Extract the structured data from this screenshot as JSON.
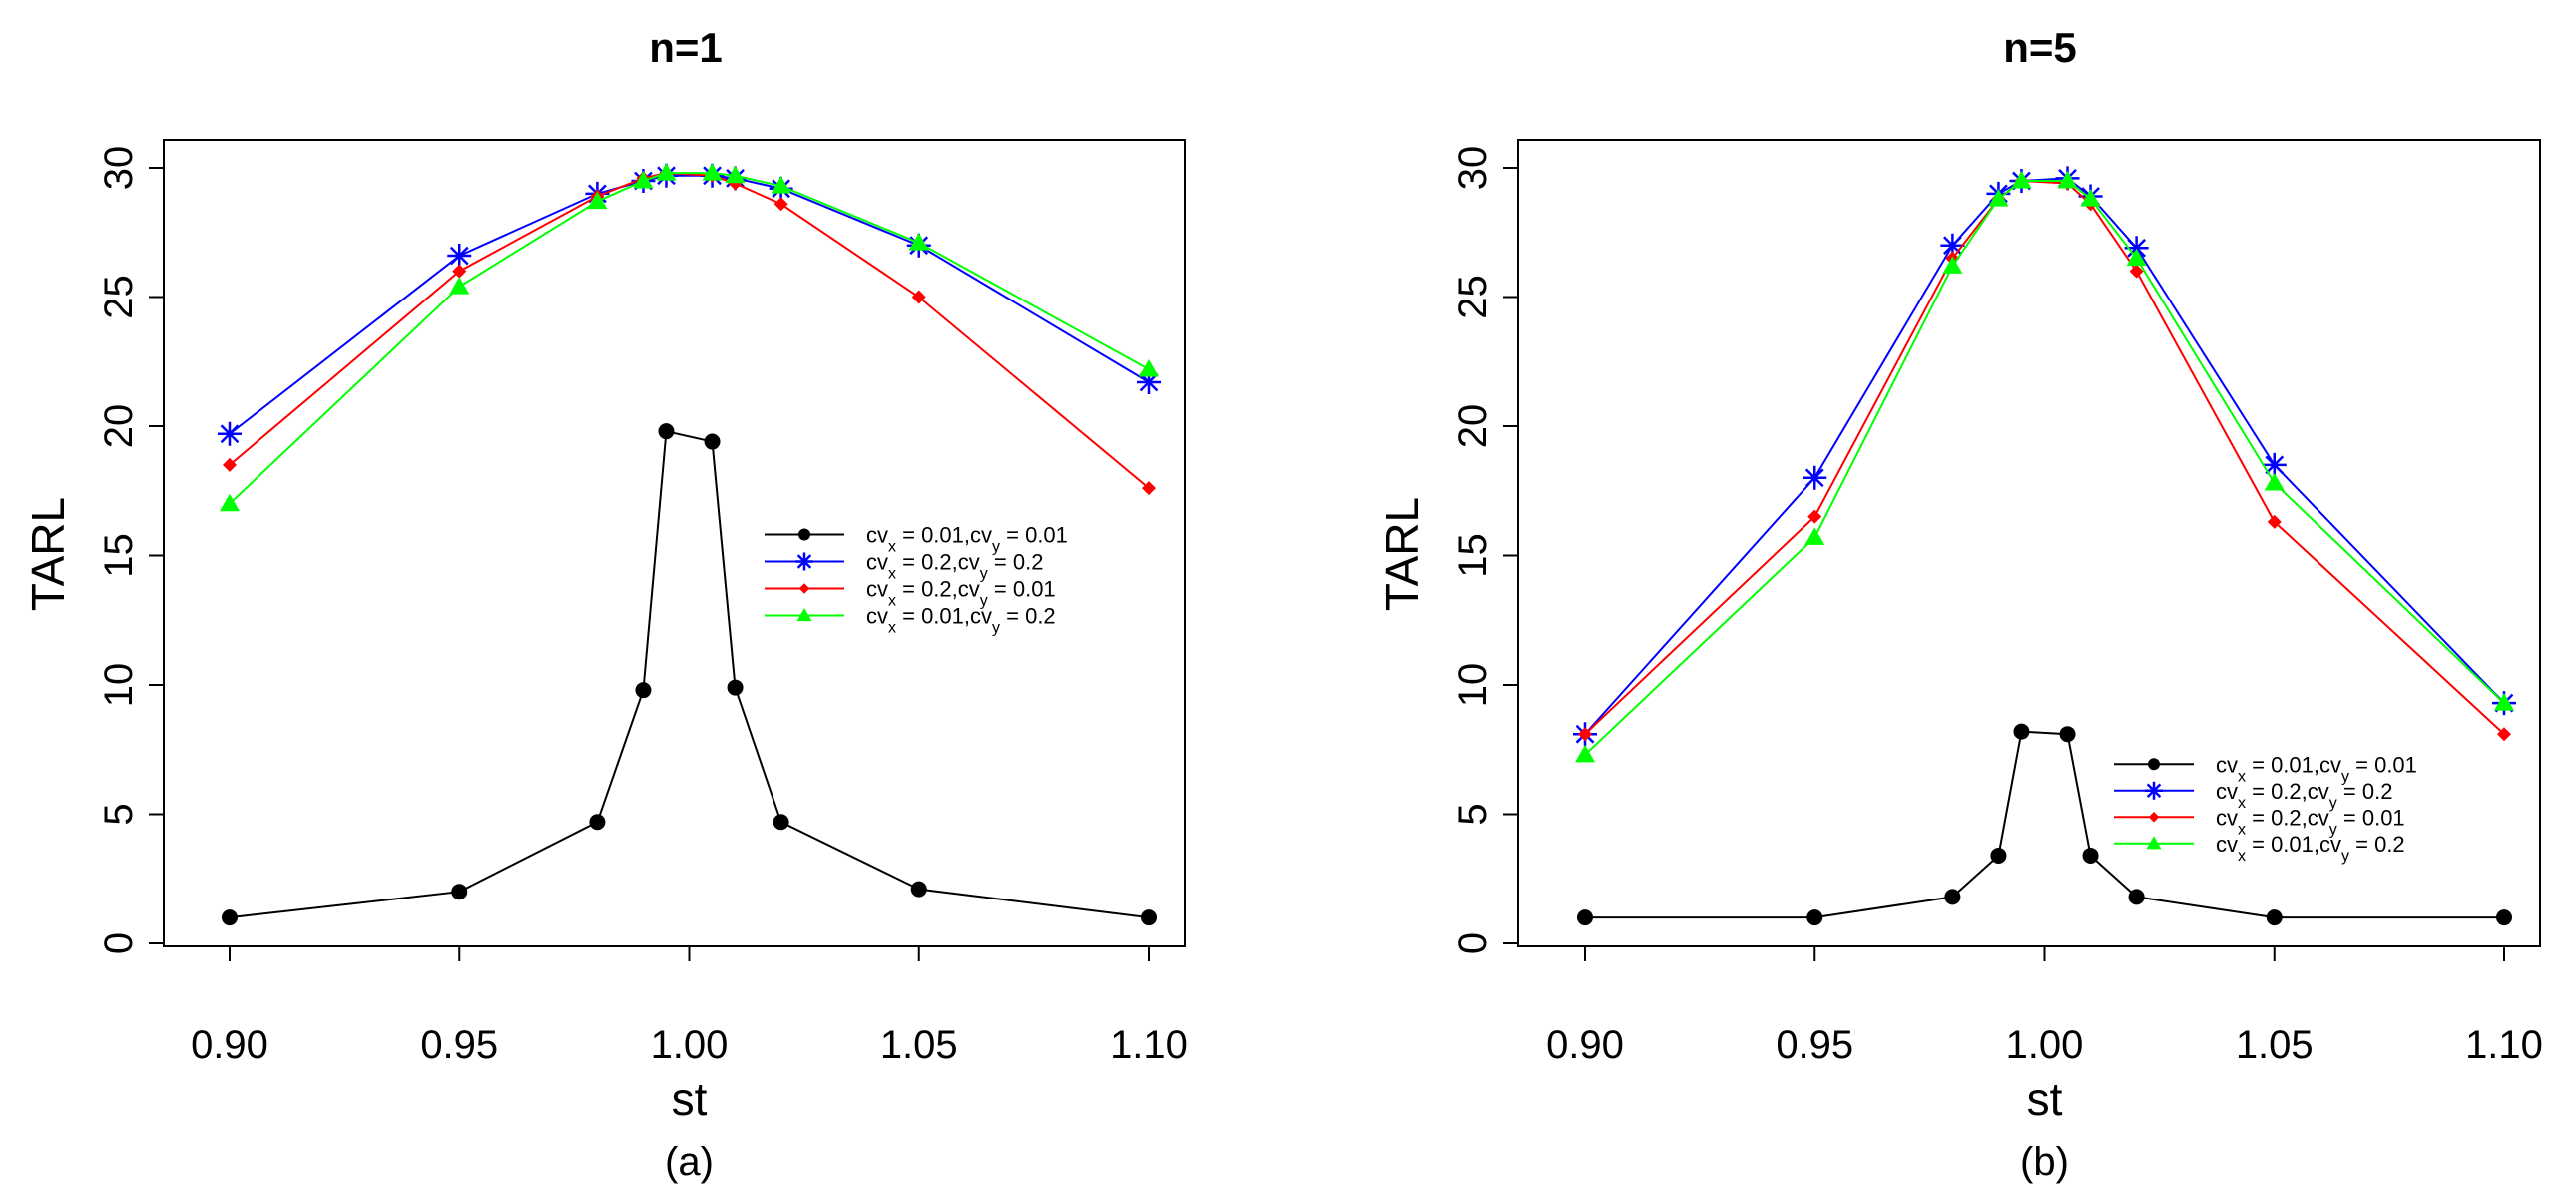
{
  "chart_data": [
    {
      "type": "line",
      "title": "n=1",
      "caption": "(a)",
      "xlabel": "st",
      "ylabel": "TARL",
      "xlim": [
        0.9,
        1.1
      ],
      "ylim": [
        0,
        30
      ],
      "xticks": [
        "0.90",
        "0.95",
        "1.00",
        "1.05",
        "1.10"
      ],
      "yticks": [
        "0",
        "5",
        "10",
        "15",
        "20",
        "25",
        "30"
      ],
      "grid": false,
      "legend_position": "center-right",
      "x": [
        0.9,
        0.95,
        0.98,
        0.99,
        0.995,
        1.005,
        1.01,
        1.02,
        1.05,
        1.1
      ],
      "series": [
        {
          "name": "cvx = 0.01,cvy = 0.01",
          "legend_main": "cv",
          "legend_parts": [
            "x",
            " = 0.01,cv",
            "y",
            " = 0.01"
          ],
          "color": "#000000",
          "marker": "circle",
          "values": [
            1.0,
            2.0,
            4.7,
            9.8,
            19.8,
            19.4,
            9.9,
            4.7,
            2.1,
            1.0
          ]
        },
        {
          "name": "cvx = 0.2,cvy = 0.2",
          "legend_main": "cv",
          "legend_parts": [
            "x",
            " = 0.2,cv",
            "y",
            " = 0.2"
          ],
          "color": "#0000ff",
          "marker": "star",
          "values": [
            19.7,
            26.6,
            29.0,
            29.5,
            29.7,
            29.7,
            29.6,
            29.2,
            27.0,
            21.7
          ]
        },
        {
          "name": "cvx = 0.2,cvy = 0.01",
          "legend_main": "cv",
          "legend_parts": [
            "x",
            " = 0.2,cv",
            "y",
            " = 0.01"
          ],
          "color": "#ff0000",
          "marker": "diamond",
          "values": [
            18.5,
            26.0,
            28.9,
            29.6,
            29.8,
            29.7,
            29.4,
            28.6,
            25.0,
            17.6
          ]
        },
        {
          "name": "cvx = 0.01,cvy = 0.2",
          "legend_main": "cv",
          "legend_parts": [
            "x",
            " = 0.01,cv",
            "y",
            " = 0.2"
          ],
          "color": "#00ff00",
          "marker": "triangle",
          "values": [
            17.0,
            25.4,
            28.7,
            29.5,
            29.8,
            29.8,
            29.7,
            29.3,
            27.1,
            22.2
          ]
        }
      ]
    },
    {
      "type": "line",
      "title": "n=5",
      "caption": "(b)",
      "xlabel": "st",
      "ylabel": "TARL",
      "xlim": [
        0.9,
        1.1
      ],
      "ylim": [
        0,
        30
      ],
      "xticks": [
        "0.90",
        "0.95",
        "1.00",
        "1.05",
        "1.10"
      ],
      "yticks": [
        "0",
        "5",
        "10",
        "15",
        "20",
        "25",
        "30"
      ],
      "grid": false,
      "legend_position": "bottom-right",
      "x": [
        0.9,
        0.95,
        0.98,
        0.99,
        0.995,
        1.005,
        1.01,
        1.02,
        1.05,
        1.1
      ],
      "series": [
        {
          "name": "cvx = 0.01,cvy = 0.01",
          "legend_main": "cv",
          "legend_parts": [
            "x",
            " = 0.01,cv",
            "y",
            " = 0.01"
          ],
          "color": "#000000",
          "marker": "circle",
          "values": [
            1.0,
            1.0,
            1.8,
            3.4,
            8.2,
            8.1,
            3.4,
            1.8,
            1.0,
            1.0
          ]
        },
        {
          "name": "cvx = 0.2,cvy = 0.2",
          "legend_main": "cv",
          "legend_parts": [
            "x",
            " = 0.2,cv",
            "y",
            " = 0.2"
          ],
          "color": "#0000ff",
          "marker": "star",
          "values": [
            8.1,
            18.0,
            27.0,
            29.0,
            29.5,
            29.6,
            28.9,
            26.9,
            18.5,
            9.3
          ]
        },
        {
          "name": "cvx = 0.2,cvy = 0.01",
          "legend_main": "cv",
          "legend_parts": [
            "x",
            " = 0.2,cv",
            "y",
            " = 0.01"
          ],
          "color": "#ff0000",
          "marker": "diamond",
          "values": [
            8.1,
            16.5,
            26.5,
            28.8,
            29.5,
            29.4,
            28.6,
            26.0,
            16.3,
            8.1
          ]
        },
        {
          "name": "cvx = 0.01,cvy = 0.2",
          "legend_main": "cv",
          "legend_parts": [
            "x",
            " = 0.01,cv",
            "y",
            " = 0.2"
          ],
          "color": "#00ff00",
          "marker": "triangle",
          "values": [
            7.3,
            15.7,
            26.2,
            28.8,
            29.5,
            29.5,
            28.8,
            26.5,
            17.8,
            9.3
          ]
        }
      ]
    }
  ]
}
